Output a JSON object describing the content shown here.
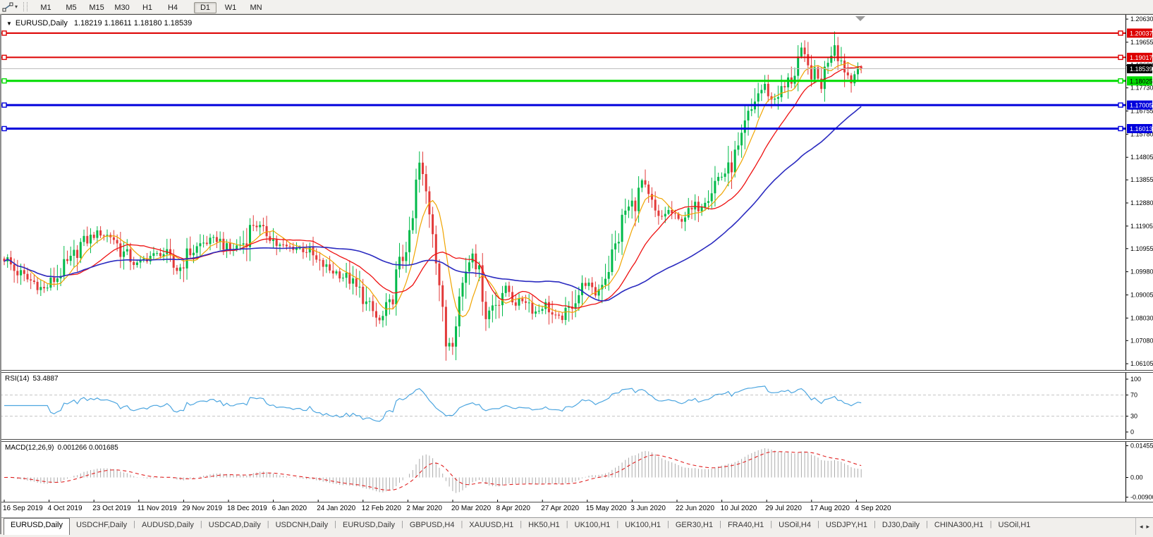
{
  "toolbar": {
    "tool_icon": "trendline-tool-icon",
    "dropdown_caret": "▾",
    "timeframes": [
      {
        "label": "M1",
        "active": false
      },
      {
        "label": "M5",
        "active": false
      },
      {
        "label": "M15",
        "active": false
      },
      {
        "label": "M30",
        "active": false
      },
      {
        "label": "H1",
        "active": false
      },
      {
        "label": "H4",
        "active": false
      },
      {
        "label": "D1",
        "active": true
      },
      {
        "label": "W1",
        "active": false
      },
      {
        "label": "MN",
        "active": false
      }
    ]
  },
  "chart": {
    "collapse_icon": "▼",
    "title": "EURUSD,Daily",
    "ohlc": "1.18219 1.18611 1.18180 1.18539"
  },
  "chart_data": {
    "type": "candlestick",
    "symbol": "EURUSD",
    "timeframe": "Daily",
    "open": "1.18219",
    "high": "1.18611",
    "low": "1.18180",
    "close": "1.18539",
    "ylim": [
      1.0596,
      1.2078
    ],
    "y_ticks": [
      "1.20630",
      "1.19655",
      "1.18680",
      "1.17730",
      "1.16755",
      "1.15780",
      "1.14805",
      "1.13855",
      "1.12880",
      "1.11905",
      "1.10955",
      "1.09980",
      "1.09005",
      "1.08030",
      "1.07080",
      "1.06105"
    ],
    "x_labels": [
      "16 Sep 2019",
      "4 Oct 2019",
      "23 Oct 2019",
      "11 Nov 2019",
      "29 Nov 2019",
      "18 Dec 2019",
      "6 Jan 2020",
      "24 Jan 2020",
      "12 Feb 2020",
      "2 Mar 2020",
      "20 Mar 2020",
      "8 Apr 2020",
      "27 Apr 2020",
      "15 May 2020",
      "3 Jun 2020",
      "22 Jun 2020",
      "10 Jul 2020",
      "29 Jul 2020",
      "17 Aug 2020",
      "4 Sep 2020"
    ],
    "candle_count": 259,
    "close_anchors": [
      [
        0,
        1.1055
      ],
      [
        4,
        1.0995
      ],
      [
        8,
        1.096
      ],
      [
        12,
        1.0925
      ],
      [
        15,
        1.0965
      ],
      [
        19,
        1.103
      ],
      [
        24,
        1.1125
      ],
      [
        28,
        1.116
      ],
      [
        32,
        1.115
      ],
      [
        36,
        1.1075
      ],
      [
        40,
        1.103
      ],
      [
        44,
        1.1065
      ],
      [
        48,
        1.1075
      ],
      [
        52,
        1.1005
      ],
      [
        56,
        1.108
      ],
      [
        60,
        1.112
      ],
      [
        64,
        1.1135
      ],
      [
        68,
        1.109
      ],
      [
        72,
        1.112
      ],
      [
        75,
        1.12
      ],
      [
        79,
        1.116
      ],
      [
        83,
        1.1105
      ],
      [
        87,
        1.11
      ],
      [
        91,
        1.109
      ],
      [
        95,
        1.103
      ],
      [
        99,
        1.1
      ],
      [
        103,
        1.0975
      ],
      [
        107,
        1.0915
      ],
      [
        110,
        1.084
      ],
      [
        113,
        1.079
      ],
      [
        116,
        1.085
      ],
      [
        119,
        1.103
      ],
      [
        122,
        1.1135
      ],
      [
        125,
        1.145
      ],
      [
        127,
        1.133
      ],
      [
        129,
        1.118
      ],
      [
        131,
        1.095
      ],
      [
        133,
        1.069
      ],
      [
        135,
        1.072
      ],
      [
        137,
        1.089
      ],
      [
        139,
        1.101
      ],
      [
        141,
        1.109
      ],
      [
        143,
        1.099
      ],
      [
        145,
        1.082
      ],
      [
        148,
        1.087
      ],
      [
        151,
        1.093
      ],
      [
        154,
        1.087
      ],
      [
        157,
        1.088
      ],
      [
        160,
        1.083
      ],
      [
        163,
        1.086
      ],
      [
        166,
        1.08
      ],
      [
        169,
        1.0815
      ],
      [
        172,
        1.089
      ],
      [
        175,
        1.095
      ],
      [
        178,
        1.0905
      ],
      [
        181,
        1.0985
      ],
      [
        184,
        1.1105
      ],
      [
        187,
        1.1255
      ],
      [
        190,
        1.129
      ],
      [
        192,
        1.138
      ],
      [
        194,
        1.13
      ],
      [
        197,
        1.122
      ],
      [
        200,
        1.1255
      ],
      [
        203,
        1.1215
      ],
      [
        206,
        1.1245
      ],
      [
        209,
        1.128
      ],
      [
        212,
        1.133
      ],
      [
        215,
        1.1395
      ],
      [
        218,
        1.1425
      ],
      [
        221,
        1.151
      ],
      [
        224,
        1.165
      ],
      [
        227,
        1.175
      ],
      [
        229,
        1.178
      ],
      [
        231,
        1.172
      ],
      [
        234,
        1.176
      ],
      [
        237,
        1.181
      ],
      [
        240,
        1.193
      ],
      [
        242,
        1.185
      ],
      [
        244,
        1.183
      ],
      [
        246,
        1.179
      ],
      [
        248,
        1.19
      ],
      [
        250,
        1.196
      ],
      [
        251,
        1.1915
      ],
      [
        253,
        1.186
      ],
      [
        255,
        1.1795
      ],
      [
        256,
        1.185
      ],
      [
        257,
        1.1872
      ],
      [
        258,
        1.18539
      ]
    ],
    "spikes": [
      [
        113,
        "low",
        1.0778
      ],
      [
        125,
        "high",
        1.1495
      ],
      [
        133,
        "low",
        1.0636
      ],
      [
        250,
        "high",
        1.2011
      ],
      [
        255,
        "low",
        1.1753
      ]
    ],
    "hlines": [
      {
        "price": 1.20037,
        "label": "1.20037",
        "color": "#DD0000",
        "text_color": "#FFFFFF",
        "width": 2
      },
      {
        "price": 1.19017,
        "label": "1.19017",
        "color": "#DD0000",
        "text_color": "#FFFFFF",
        "width": 2
      },
      {
        "price": 1.18025,
        "label": "1.18025",
        "color": "#00DC00",
        "text_color": "#000000",
        "width": 3
      },
      {
        "price": 1.17005,
        "label": "1.17005",
        "color": "#0000DC",
        "text_color": "#FFFFFF",
        "width": 3
      },
      {
        "price": 1.16013,
        "label": "1.16013",
        "color": "#0000DC",
        "text_color": "#FFFFFF",
        "width": 3
      }
    ],
    "current_price": {
      "value": 1.18539,
      "label": "1.18539",
      "line_color": "#BDBDBD",
      "badge_bg": "#000000",
      "badge_text": "#FFFFFF"
    },
    "moving_averages": [
      {
        "period": 8,
        "color": "#F0A400",
        "width": 1.2
      },
      {
        "period": 20,
        "color": "#EE1111",
        "width": 1.3
      },
      {
        "period": 50,
        "color": "#2B2BC0",
        "width": 1.6
      }
    ],
    "rsi": {
      "period": 14,
      "current": 53.4887,
      "levels": [
        70,
        30
      ],
      "axis_ticks": [
        "100",
        "70",
        "30",
        "0"
      ],
      "range": [
        0,
        100
      ],
      "color": "#4DA6E0"
    },
    "macd": {
      "fast": 12,
      "slow": 26,
      "signal": 9,
      "main_value": 0.001266,
      "signal_value": 0.001685,
      "axis_ticks": [
        "0.01455",
        "0.00",
        "-0.00900"
      ],
      "ylim": [
        -0.0105,
        0.016
      ],
      "hist_color": "#ABABAB",
      "signal_color": "#E02020"
    }
  },
  "rsi_panel": {
    "label": "RSI(14)",
    "value": "53.4887"
  },
  "macd_panel": {
    "label": "MACD(12,26,9)",
    "values": "0.001266 0.001685"
  },
  "tabs_bar": {
    "tabs": [
      {
        "label": "EURUSD,Daily",
        "active": true
      },
      {
        "label": "USDCHF,Daily",
        "active": false
      },
      {
        "label": "AUDUSD,Daily",
        "active": false
      },
      {
        "label": "USDCAD,Daily",
        "active": false
      },
      {
        "label": "USDCNH,Daily",
        "active": false
      },
      {
        "label": "EURUSD,Daily",
        "active": false
      },
      {
        "label": "GBPUSD,H4",
        "active": false
      },
      {
        "label": "XAUUSD,H1",
        "active": false
      },
      {
        "label": "HK50,H1",
        "active": false
      },
      {
        "label": "UK100,H1",
        "active": false
      },
      {
        "label": "UK100,H1",
        "active": false
      },
      {
        "label": "GER30,H1",
        "active": false
      },
      {
        "label": "FRA40,H1",
        "active": false
      },
      {
        "label": "USOil,H4",
        "active": false
      },
      {
        "label": "USDJPY,H1",
        "active": false
      },
      {
        "label": "DJ30,Daily",
        "active": false
      },
      {
        "label": "CHINA300,H1",
        "active": false
      },
      {
        "label": "USOil,H1",
        "active": false
      }
    ],
    "scroll_left": "◂",
    "scroll_right": "▸"
  },
  "colors": {
    "up": "#00BA4A",
    "down": "#E23A3A",
    "axis_text": "#000000",
    "panel_border": "#4a4a4a"
  }
}
